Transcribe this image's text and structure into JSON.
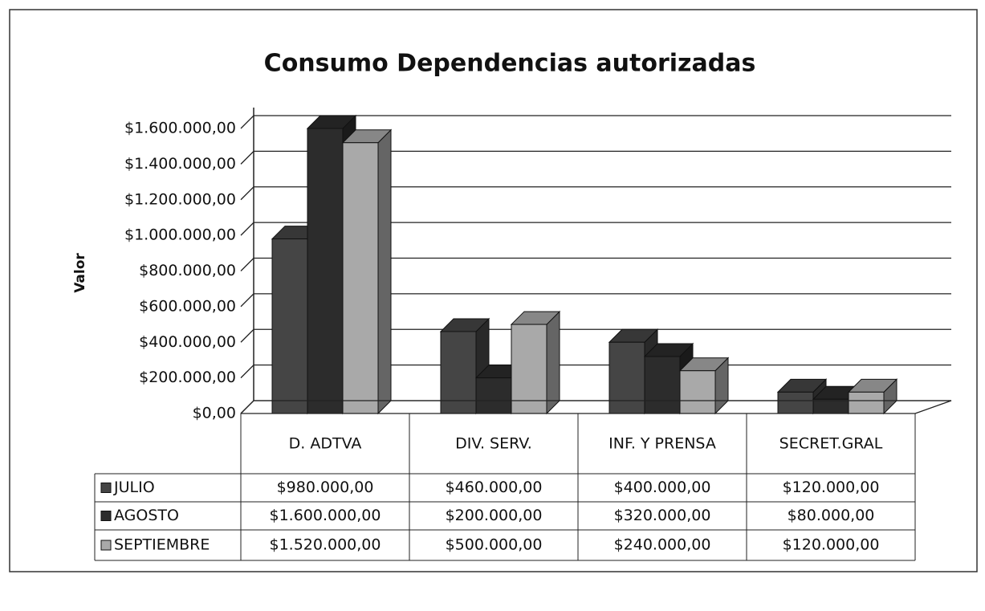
{
  "chart_data": {
    "type": "bar",
    "title": "Consumo Dependencias autorizadas",
    "y_label": "Valor",
    "categories": [
      "D. ADTVA",
      "DIV. SERV.",
      "INF. Y PRENSA",
      "SECRET.GRAL"
    ],
    "series": [
      {
        "name": "JULIO",
        "color": "#454545",
        "values": [
          980000,
          460000,
          400000,
          120000
        ],
        "value_labels": [
          "$980.000,00",
          "$460.000,00",
          "$400.000,00",
          "$120.000,00"
        ]
      },
      {
        "name": "AGOSTO",
        "color": "#2c2c2c",
        "values": [
          1600000,
          200000,
          320000,
          80000
        ],
        "value_labels": [
          "$1.600.000,00",
          "$200.000,00",
          "$320.000,00",
          "$80.000,00"
        ]
      },
      {
        "name": "SEPTIEMBRE",
        "color": "#a9a9a9",
        "values": [
          1520000,
          500000,
          240000,
          120000
        ],
        "value_labels": [
          "$1.520.000,00",
          "$500.000,00",
          "$240.000,00",
          "$120.000,00"
        ]
      }
    ],
    "ylim": [
      0,
      1600000
    ],
    "yticks": [
      {
        "value": 0,
        "label": "$0,00"
      },
      {
        "value": 200000,
        "label": "$200.000,00"
      },
      {
        "value": 400000,
        "label": "$400.000,00"
      },
      {
        "value": 600000,
        "label": "$600.000,00"
      },
      {
        "value": 800000,
        "label": "$800.000,00"
      },
      {
        "value": 1000000,
        "label": "$1.000.000,00"
      },
      {
        "value": 1200000,
        "label": "$1.200.000,00"
      },
      {
        "value": 1400000,
        "label": "$1.400.000,00"
      },
      {
        "value": 1600000,
        "label": "$1.600.000,00"
      }
    ],
    "grid": true
  }
}
